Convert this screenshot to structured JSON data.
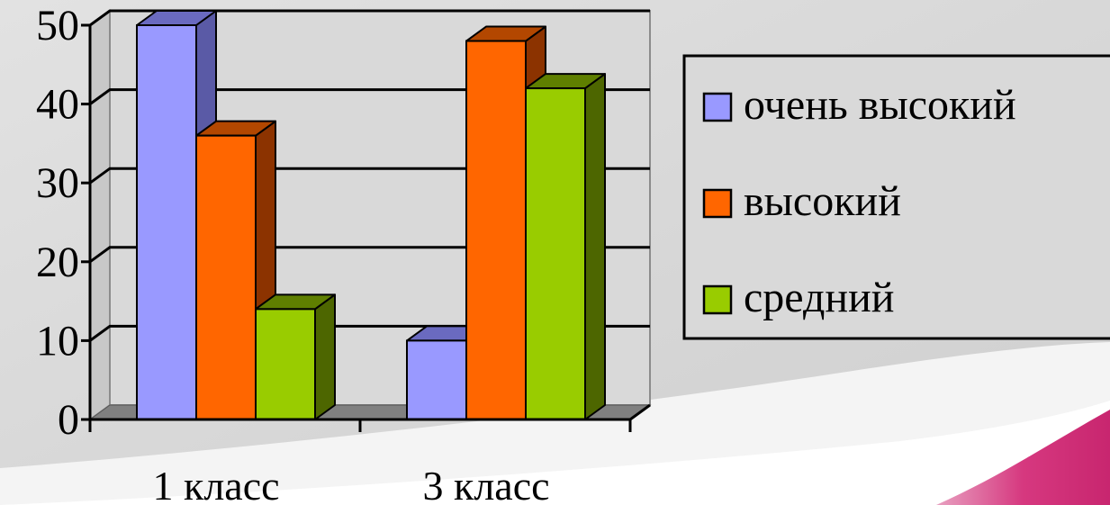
{
  "chart_data": {
    "type": "bar",
    "categories": [
      "1 класс",
      "3 класс"
    ],
    "series": [
      {
        "name": "очень высокий",
        "values": [
          50,
          10
        ],
        "color": "#9999FF",
        "side": "#5A5AA6",
        "top": "#6A6AC0"
      },
      {
        "name": "высокий",
        "values": [
          36,
          48
        ],
        "color": "#FF6600",
        "side": "#8C3300",
        "top": "#B34700"
      },
      {
        "name": "средний",
        "values": [
          14,
          42
        ],
        "color": "#99CC00",
        "side": "#4D6600",
        "top": "#5F7F00"
      }
    ],
    "ylim": [
      0,
      50
    ],
    "yticks": [
      "0",
      "10",
      "20",
      "30",
      "40",
      "50"
    ],
    "ytick_values": [
      0,
      10,
      20,
      30,
      40,
      50
    ],
    "title": "",
    "xlabel": "",
    "ylabel": "",
    "grid": true,
    "chart_style": "3d-clustered-column",
    "legend_position": "right",
    "colors": {
      "background": "#D9D9D9",
      "floor": "#808080",
      "gridline": "#000000",
      "slide_accent": "#D6387F"
    }
  }
}
